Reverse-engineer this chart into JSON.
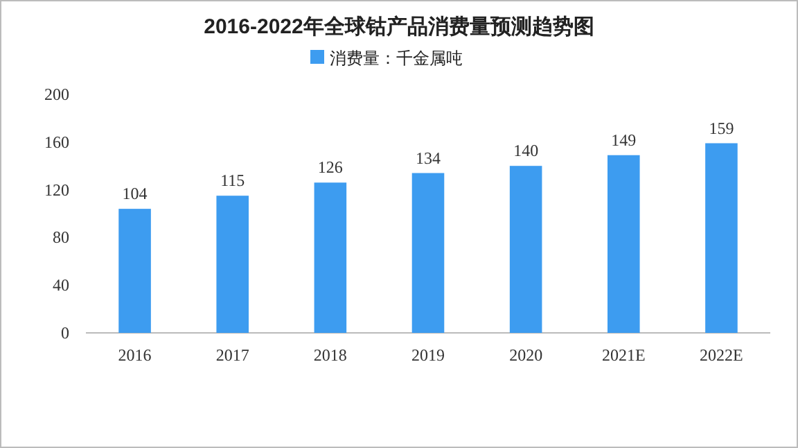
{
  "chart_data": {
    "type": "bar",
    "title": "2016-2022年全球钴产品消费量预测趋势图",
    "categories": [
      "2016",
      "2017",
      "2018",
      "2019",
      "2020",
      "2021E",
      "2022E"
    ],
    "series": [
      {
        "name": "消费量：千金属吨",
        "color": "#3d9cf0",
        "values": [
          104,
          115,
          126,
          134,
          140,
          149,
          159
        ]
      }
    ],
    "ylim": [
      0,
      200
    ],
    "yticks": [
      0,
      40,
      80,
      120,
      160,
      200
    ],
    "data_labels": true,
    "legend": "top",
    "grid": false
  }
}
